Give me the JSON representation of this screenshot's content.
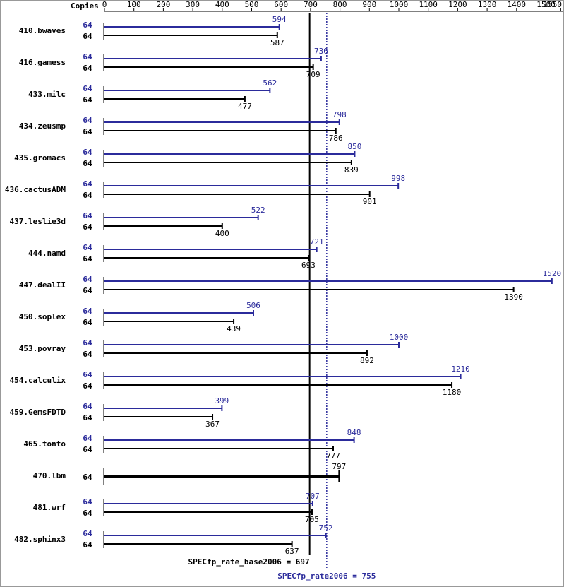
{
  "chart_data": {
    "type": "bar",
    "orientation": "horizontal",
    "copies_label": "Copies",
    "categories": [
      "410.bwaves",
      "416.gamess",
      "433.milc",
      "434.zeusmp",
      "435.gromacs",
      "436.cactusADM",
      "437.leslie3d",
      "444.namd",
      "447.dealII",
      "450.soplex",
      "453.povray",
      "454.calculix",
      "459.GemsFDTD",
      "465.tonto",
      "470.lbm",
      "481.wrf",
      "482.sphinx3"
    ],
    "series": [
      {
        "name": "SPECfp_rate2006",
        "color": "#2b2b9b",
        "copies": [
          64,
          64,
          64,
          64,
          64,
          64,
          64,
          64,
          64,
          64,
          64,
          64,
          64,
          64,
          null,
          64,
          64
        ],
        "values": [
          594,
          736,
          562,
          798,
          850,
          998,
          522,
          721,
          1520,
          506,
          1000,
          1210,
          399,
          848,
          null,
          707,
          752
        ]
      },
      {
        "name": "SPECfp_rate_base2006",
        "color": "#000000",
        "copies": [
          64,
          64,
          64,
          64,
          64,
          64,
          64,
          64,
          64,
          64,
          64,
          64,
          64,
          64,
          64,
          64,
          64
        ],
        "values": [
          587,
          709,
          477,
          786,
          839,
          901,
          400,
          693,
          1390,
          439,
          892,
          1180,
          367,
          777,
          797,
          705,
          637
        ]
      }
    ],
    "xlim": [
      0,
      1550
    ],
    "xticks": [
      0,
      100,
      200,
      300,
      400,
      500,
      600,
      700,
      800,
      900,
      1000,
      1100,
      1200,
      1300,
      1400,
      1500,
      1550
    ],
    "reference_lines": [
      {
        "label": "SPECfp_rate_base2006 = 697",
        "value": 697,
        "color": "#000000",
        "style": "solid"
      },
      {
        "label": "SPECfp_rate2006 = 755",
        "value": 755,
        "color": "#2b2b9b",
        "style": "dotted"
      }
    ]
  }
}
